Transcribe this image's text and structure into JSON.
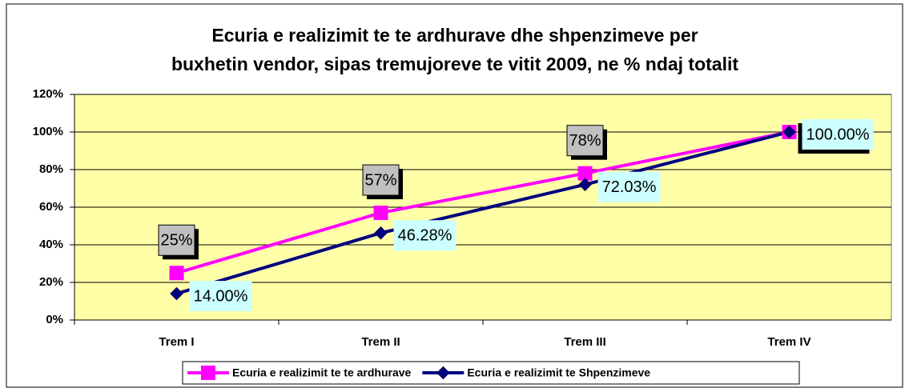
{
  "chart_data": {
    "type": "line",
    "title": [
      "Ecuria e realizimit te te ardhurave dhe shpenzimeve per",
      "buxhetin vendor, sipas tremujoreve te vitit 2009, ne % ndaj totalit"
    ],
    "categories": [
      "Trem I",
      "Trem II",
      "Trem III",
      "Trem IV"
    ],
    "series": [
      {
        "name": "Ecuria e realizimit te te ardhurave",
        "color": "#ff00ff",
        "marker": "square",
        "values": [
          25,
          57,
          78,
          100
        ],
        "value_labels": [
          "25%",
          "57%",
          "78%",
          null
        ]
      },
      {
        "name": "Ecuria e realizimit te Shpenzimeve",
        "color": "#000080",
        "marker": "diamond",
        "values": [
          14,
          46.28,
          72.03,
          100
        ],
        "value_labels": [
          "14.00%",
          "46.28%",
          "72.03%",
          "100.00%"
        ]
      }
    ],
    "ylim": [
      0,
      120
    ],
    "yticks": [
      {
        "value": 0,
        "label": "0%"
      },
      {
        "value": 20,
        "label": "20%"
      },
      {
        "value": 40,
        "label": "40%"
      },
      {
        "value": 60,
        "label": "60%"
      },
      {
        "value": 80,
        "label": "80%"
      },
      {
        "value": 100,
        "label": "100%"
      },
      {
        "value": 120,
        "label": "120%"
      }
    ],
    "grid": true,
    "legend": "bottom"
  }
}
